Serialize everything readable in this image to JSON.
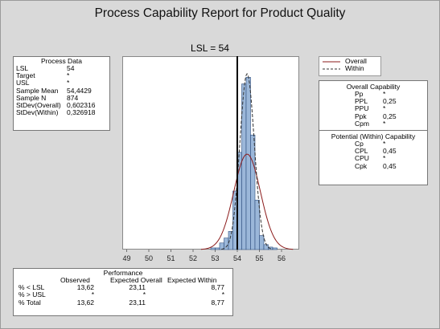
{
  "title": "Process Capability Report for Product Quality",
  "process_data": {
    "header": "Process Data",
    "rows": [
      {
        "label": "LSL",
        "value": "54"
      },
      {
        "label": "Target",
        "value": "*"
      },
      {
        "label": "USL",
        "value": "*"
      },
      {
        "label": "Sample Mean",
        "value": "54,4429"
      },
      {
        "label": "Sample N",
        "value": "874"
      },
      {
        "label": "StDev(Overall)",
        "value": "0,602316"
      },
      {
        "label": "StDev(Within)",
        "value": "0,326918"
      }
    ]
  },
  "legend": [
    {
      "label": "Overall",
      "color": "#8b1a1a",
      "style": "solid"
    },
    {
      "label": "Within",
      "color": "#333333",
      "style": "dashed"
    }
  ],
  "overall_capability": {
    "header": "Overall Capability",
    "rows": [
      {
        "label": "Pp",
        "value": "*"
      },
      {
        "label": "PPL",
        "value": "0,25"
      },
      {
        "label": "PPU",
        "value": "*"
      },
      {
        "label": "Ppk",
        "value": "0,25"
      },
      {
        "label": "Cpm",
        "value": "*"
      }
    ]
  },
  "within_capability": {
    "header": "Potential (Within) Capability",
    "rows": [
      {
        "label": "Cp",
        "value": "*"
      },
      {
        "label": "CPL",
        "value": "0,45"
      },
      {
        "label": "CPU",
        "value": "*"
      },
      {
        "label": "Cpk",
        "value": "0,45"
      }
    ]
  },
  "performance": {
    "header": "Performance",
    "columns": [
      "Observed",
      "Expected Overall",
      "Expected Within"
    ],
    "rows": [
      {
        "label": "% < LSL",
        "values": [
          "13,62",
          "23,11",
          "8,77"
        ]
      },
      {
        "label": "% > USL",
        "values": [
          "*",
          "*",
          "*"
        ]
      },
      {
        "label": "% Total",
        "values": [
          "13,62",
          "23,11",
          "8,77"
        ]
      }
    ]
  },
  "chart_data": {
    "type": "bar",
    "title": "LSL = 54",
    "xlabel": "",
    "ylabel": "",
    "xlim": [
      48.8,
      56.8
    ],
    "x_ticks": [
      "49",
      "50",
      "51",
      "52",
      "53",
      "54",
      "55",
      "56"
    ],
    "bin_width": 0.2,
    "bins": [
      {
        "x": 52.9,
        "count": 2
      },
      {
        "x": 53.1,
        "count": 2
      },
      {
        "x": 53.3,
        "count": 8
      },
      {
        "x": 53.5,
        "count": 14
      },
      {
        "x": 53.7,
        "count": 22
      },
      {
        "x": 53.9,
        "count": 71
      },
      {
        "x": 54.1,
        "count": 118
      },
      {
        "x": 54.3,
        "count": 201
      },
      {
        "x": 54.5,
        "count": 209
      },
      {
        "x": 54.7,
        "count": 139
      },
      {
        "x": 54.9,
        "count": 60
      },
      {
        "x": 55.1,
        "count": 17
      },
      {
        "x": 55.3,
        "count": 6
      },
      {
        "x": 55.5,
        "count": 3
      },
      {
        "x": 55.7,
        "count": 2
      }
    ],
    "lsl": 54,
    "mean": 54.4429,
    "stdev_overall": 0.602316,
    "stdev_within": 0.326918,
    "n": 874,
    "colors": {
      "bar_fill": "#9bb7d9",
      "bar_stroke": "#2f4f7f",
      "overall_curve": "#8b1a1a",
      "within_curve": "#333333",
      "lsl_line": "#000000"
    }
  }
}
